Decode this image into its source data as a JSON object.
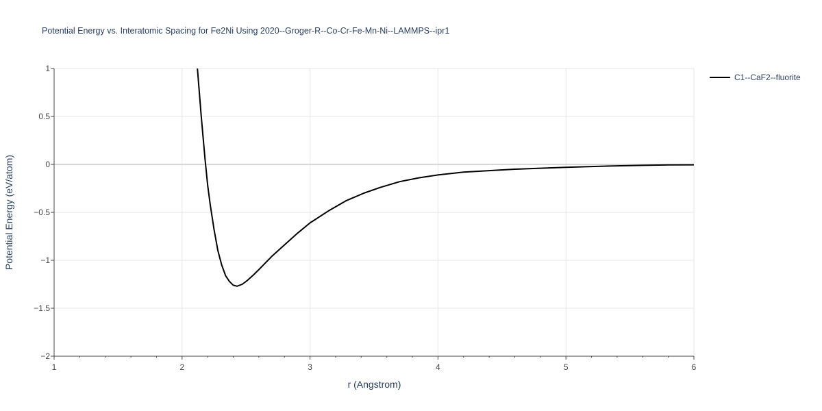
{
  "chart_data": {
    "type": "line",
    "title": "Potential Energy vs. Interatomic Spacing for Fe2Ni Using 2020--Groger-R--Co-Cr-Fe-Mn-Ni--LAMMPS--ipr1",
    "xlabel": "r (Angstrom)",
    "ylabel": "Potential Energy (eV/atom)",
    "xlim": [
      1,
      6
    ],
    "ylim": [
      -2,
      1
    ],
    "x_ticks": [
      1,
      2,
      3,
      4,
      5,
      6
    ],
    "x_tick_labels": [
      "1",
      "2",
      "3",
      "4",
      "5",
      "6"
    ],
    "y_ticks": [
      -2,
      -1.5,
      -1,
      -0.5,
      0,
      0.5,
      1
    ],
    "y_tick_labels": [
      "−2",
      "−1.5",
      "−1",
      "−0.5",
      "0",
      "0.5",
      "1"
    ],
    "grid": true,
    "legend_position": "top-right",
    "series": [
      {
        "name": "C1--CaF2--fluorite",
        "color": "#000000",
        "x": [
          2.12,
          2.15,
          2.18,
          2.2,
          2.22,
          2.25,
          2.28,
          2.31,
          2.34,
          2.37,
          2.4,
          2.43,
          2.47,
          2.51,
          2.56,
          2.62,
          2.7,
          2.8,
          2.9,
          3.0,
          3.15,
          3.28,
          3.42,
          3.55,
          3.7,
          3.85,
          4.0,
          4.2,
          4.4,
          4.6,
          4.8,
          5.0,
          5.2,
          5.4,
          5.6,
          5.8,
          6.0
        ],
        "y": [
          1.0,
          0.5,
          0.05,
          -0.22,
          -0.42,
          -0.68,
          -0.9,
          -1.05,
          -1.16,
          -1.22,
          -1.26,
          -1.27,
          -1.25,
          -1.21,
          -1.15,
          -1.07,
          -0.96,
          -0.84,
          -0.72,
          -0.61,
          -0.48,
          -0.38,
          -0.3,
          -0.24,
          -0.18,
          -0.14,
          -0.11,
          -0.08,
          -0.065,
          -0.05,
          -0.04,
          -0.03,
          -0.022,
          -0.015,
          -0.01,
          -0.006,
          -0.004
        ]
      }
    ]
  }
}
